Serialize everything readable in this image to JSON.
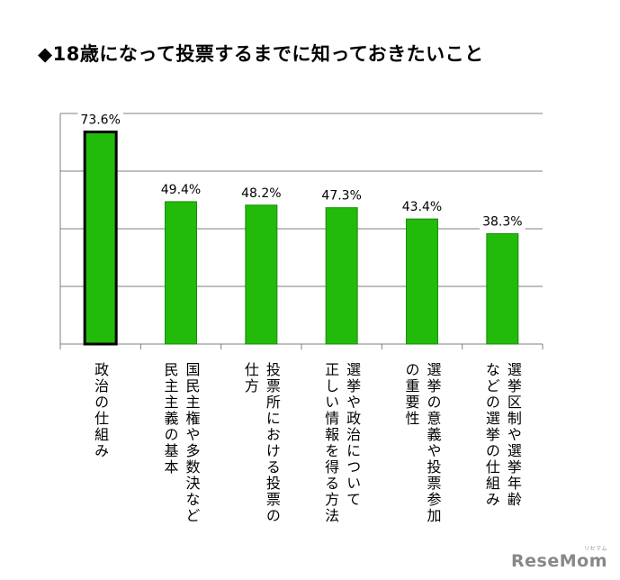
{
  "title": "◆18歳になって投票するまでに知っておきたいこと",
  "watermark": "ReseMom",
  "watermark_sub": "リセマム",
  "colors": {
    "bar": "#22bb0a",
    "bar_edge": "#1a8c08",
    "highlight_edge": "#000000",
    "grid": "#7f7f7f"
  },
  "chart_data": {
    "type": "bar",
    "categories": [
      "政治の仕組み",
      "国民主権や多数決など民主主義の基本",
      "投票所における投票の仕方",
      "選挙や政治について正しい情報を得る方法",
      "選挙の意義や投票参加の重要性",
      "選挙区制や選挙年齢などの選挙の仕組み"
    ],
    "category_lines": [
      [
        "政治の仕組み"
      ],
      [
        "国民主権や多数決など",
        "民主主義の基本"
      ],
      [
        "投票所における投票の",
        "仕方"
      ],
      [
        "選挙や政治について",
        "正しい情報を得る方法"
      ],
      [
        "選挙の意義や投票参加",
        "の重要性"
      ],
      [
        "選挙区制や選挙年齢",
        "などの選挙の仕組み"
      ]
    ],
    "values": [
      73.6,
      49.4,
      48.2,
      47.3,
      43.4,
      38.3
    ],
    "data_labels": [
      "73.6%",
      "49.4%",
      "48.2%",
      "47.3%",
      "43.4%",
      "38.3%"
    ],
    "highlighted_index": 0,
    "ylim": [
      0,
      80
    ],
    "y_gridlines": [
      20,
      40,
      60,
      80
    ],
    "xlabel": "",
    "ylabel": "",
    "grid": true
  }
}
